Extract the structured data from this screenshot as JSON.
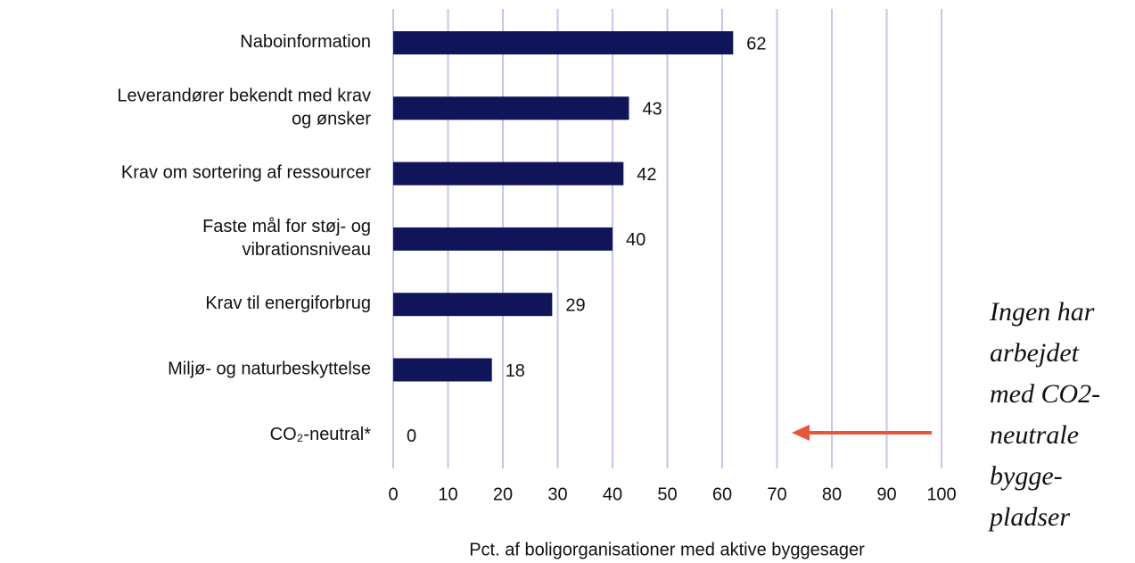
{
  "chart_data": {
    "type": "bar",
    "orientation": "horizontal",
    "categories": [
      "Naboinformation",
      "Leverandører bekendt med krav\nog ønsker",
      "Krav om sortering af ressourcer",
      "Faste mål for støj- og\nvibrationsniveau",
      "Krav til energiforbrug",
      "Miljø- og naturbeskyttelse",
      "CO₂-neutral*"
    ],
    "values": [
      62,
      43,
      42,
      40,
      29,
      18,
      0
    ],
    "color": "#10155a",
    "xlim": [
      0,
      100
    ],
    "xticks": [
      0,
      10,
      20,
      30,
      40,
      50,
      60,
      70,
      80,
      90,
      100
    ],
    "grid": true,
    "grid_color": "#c3c6f2",
    "x_label": "Pct. af boligorganisationer med aktive byggesager",
    "annotation": {
      "lines": [
        "Ingen har",
        "arbejdet",
        "med CO2-",
        "neutrale",
        "bygge-",
        "pladser"
      ],
      "color": "#000066",
      "arrow_color": "#e8553b"
    }
  }
}
